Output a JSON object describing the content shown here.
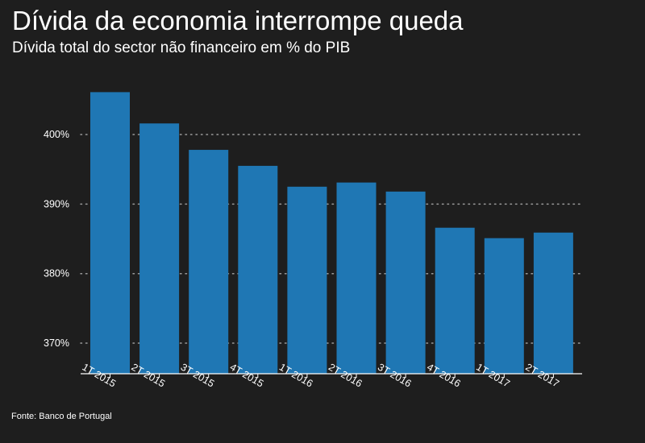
{
  "header": {
    "title": "Dívida da economia interrompe queda",
    "subtitle": "Dívida total do sector não financeiro em % do PIB"
  },
  "footer": {
    "source": "Fonte: Banco de Portugal"
  },
  "colors": {
    "background": "#1e1e1e",
    "bar": "#1f77b4",
    "grid": "#9a9a9a",
    "axis": "#ffffff",
    "text": "#ffffff"
  },
  "chart_data": {
    "type": "bar",
    "title": "Dívida da economia interrompe queda",
    "subtitle": "Dívida total do sector não financeiro em % do PIB",
    "xlabel": "",
    "ylabel": "",
    "categories": [
      "1T 2015",
      "2T 2015",
      "3T 2015",
      "4T 2015",
      "1T 2016",
      "2T 2016",
      "3T 2016",
      "4T 2016",
      "1T 2017",
      "2T 2017"
    ],
    "values": [
      406.1,
      401.6,
      397.8,
      395.5,
      392.5,
      393.1,
      391.8,
      386.6,
      385.1,
      385.9
    ],
    "ylim": [
      365.6,
      408
    ],
    "yticks": [
      370,
      380,
      390,
      400
    ],
    "ytick_labels": [
      "370%",
      "380%",
      "390%",
      "400%"
    ],
    "grid": "horizontal dotted",
    "legend": "none"
  }
}
